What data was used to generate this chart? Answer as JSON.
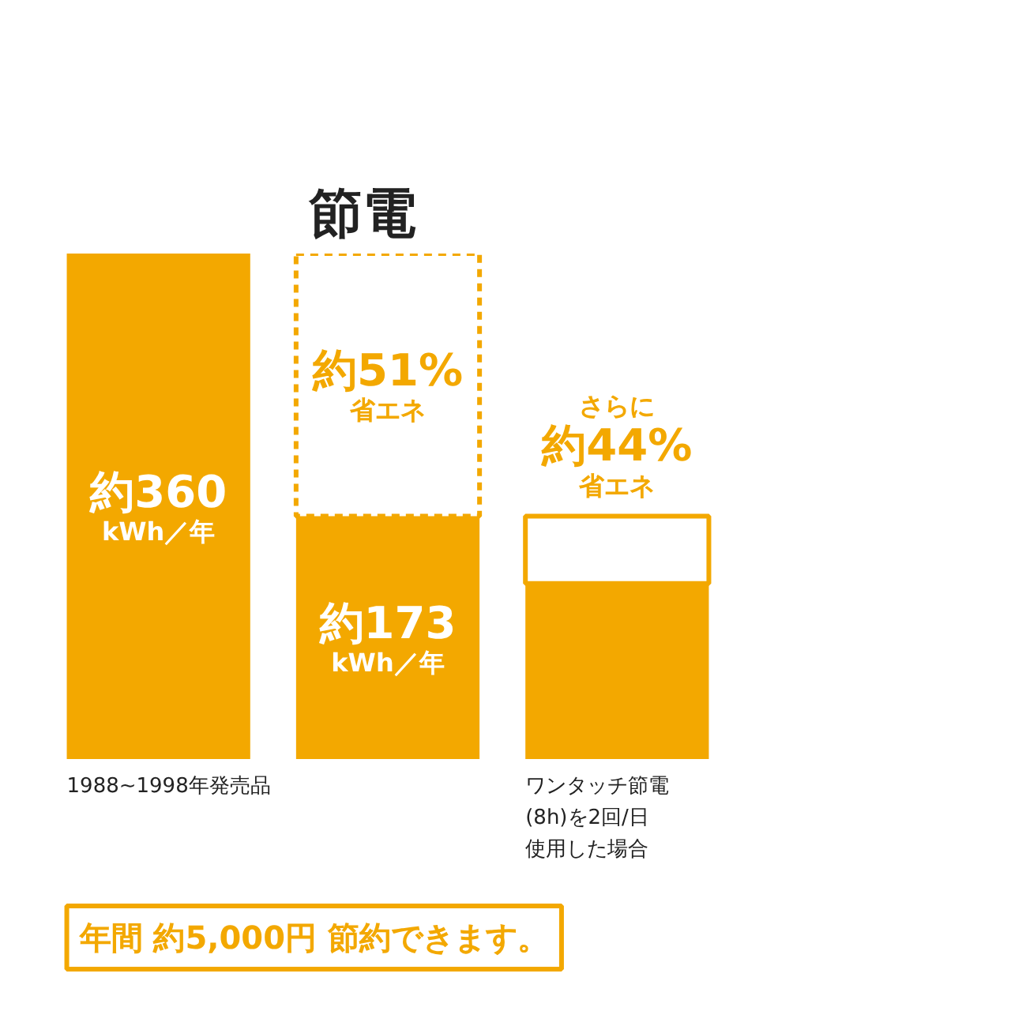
{
  "chart_data": {
    "type": "bar",
    "title": "節電",
    "categories": [
      "1988~1998年発売品",
      null,
      "ワンタッチ節電(8h)を2回/日使用した場合"
    ],
    "stacked": true,
    "series": [
      {
        "color": "#f3a800",
        "values": [
          360,
          173,
          125
        ],
        "value_labels": [
          "約360kWh／年",
          "約173kWh／年",
          null
        ]
      },
      {
        "color": "#f3a800",
        "values": [
          null,
          187,
          null
        ],
        "line_style": "dashed",
        "value_labels": [
          null,
          "約51%省エネ",
          null
        ]
      },
      {
        "color": "#f3a800",
        "values": [
          null,
          null,
          48
        ],
        "line_style": "solid",
        "value_labels": [
          null,
          null,
          "さらに約44%省エネ"
        ]
      }
    ],
    "annotations": [
      "年間 約5,000円 節約できます。"
    ]
  }
}
